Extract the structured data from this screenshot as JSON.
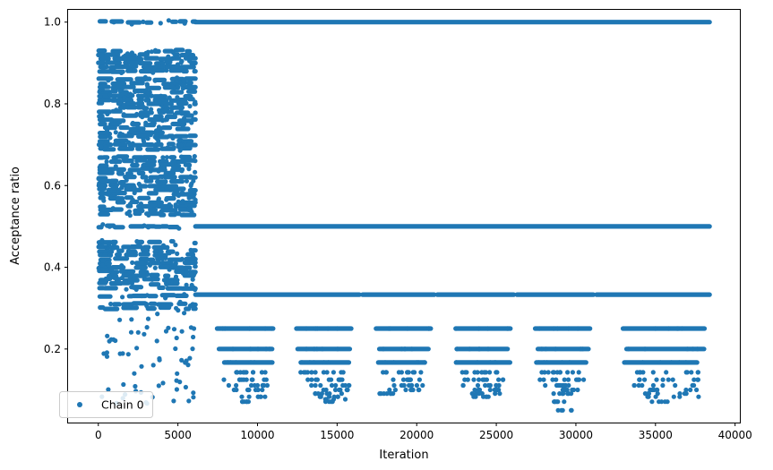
{
  "chart_data": {
    "type": "scatter",
    "title": "",
    "xlabel": "Iteration",
    "ylabel": "Acceptance ratio",
    "xlim": [
      -1900,
      40300
    ],
    "ylim": [
      0.02,
      1.03
    ],
    "xticks": [
      0,
      5000,
      10000,
      15000,
      20000,
      25000,
      30000,
      35000,
      40000
    ],
    "xtick_labels": [
      "0",
      "5000",
      "10000",
      "15000",
      "20000",
      "25000",
      "30000",
      "35000",
      "40000"
    ],
    "yticks": [
      0.2,
      0.4,
      0.6,
      0.8,
      1.0
    ],
    "ytick_labels": [
      "0.2",
      "0.4",
      "0.6",
      "0.8",
      "1.0"
    ],
    "grid": false,
    "legend_position": "bottom-left",
    "color": "#1f77b4",
    "series": [
      {
        "name": "Chain 0",
        "marker": "circle",
        "n_iterations": 38400,
        "phases": [
          {
            "x_range": [
              0,
              6100
            ],
            "description": "adaptation phase, dense band of values between 0.3 and 0.94 with sparse values down to 0.07",
            "dense_levels": [
              1.0,
              0.93,
              0.92,
              0.91,
              0.9,
              0.89,
              0.88,
              0.86,
              0.85,
              0.84,
              0.83,
              0.82,
              0.81,
              0.8,
              0.79,
              0.78,
              0.77,
              0.76,
              0.75,
              0.74,
              0.73,
              0.72,
              0.71,
              0.7,
              0.69,
              0.67,
              0.66,
              0.65,
              0.64,
              0.63,
              0.62,
              0.61,
              0.6,
              0.59,
              0.58,
              0.57,
              0.56,
              0.55,
              0.54,
              0.53,
              0.5,
              0.46,
              0.45,
              0.44,
              0.43,
              0.42,
              0.41,
              0.4,
              0.39,
              0.38,
              0.37,
              0.36,
              0.35,
              0.33,
              0.31,
              0.3
            ],
            "sparse_levels": [
              0.29,
              0.27,
              0.25,
              0.24,
              0.23,
              0.22,
              0.2,
              0.19,
              0.18,
              0.17,
              0.16,
              0.14,
              0.12,
              0.11,
              0.1,
              0.09,
              0.08,
              0.07
            ]
          },
          {
            "x_range": [
              6100,
              38400
            ],
            "description": "sampling phase, values cluster at discrete fractions",
            "constant_levels": [
              1.0,
              0.5
            ],
            "level_0333_gaps": [
              [
                16400,
                16600
              ],
              [
                21100,
                21300
              ],
              [
                26100,
                26300
              ],
              [
                31100,
                31300
              ]
            ],
            "clusters": [
              {
                "x_range": [
                  6800,
                  11200
                ],
                "levels": [
                  0.25,
                  0.2,
                  0.167,
                  0.143,
                  0.125,
                  0.111,
                  0.1,
                  0.083,
                  0.071
                ]
              },
              {
                "x_range": [
                  11800,
                  16100
                ],
                "levels": [
                  0.25,
                  0.2,
                  0.167,
                  0.143,
                  0.125,
                  0.111,
                  0.1,
                  0.091,
                  0.083,
                  0.077,
                  0.071
                ]
              },
              {
                "x_range": [
                  16800,
                  21100
                ],
                "levels": [
                  0.25,
                  0.2,
                  0.167,
                  0.143,
                  0.125,
                  0.111,
                  0.1,
                  0.091
                ]
              },
              {
                "x_range": [
                  21800,
                  26100
                ],
                "levels": [
                  0.25,
                  0.2,
                  0.167,
                  0.143,
                  0.125,
                  0.111,
                  0.1,
                  0.091,
                  0.083
                ]
              },
              {
                "x_range": [
                  26800,
                  31100
                ],
                "levels": [
                  0.25,
                  0.2,
                  0.167,
                  0.143,
                  0.125,
                  0.111,
                  0.1,
                  0.091,
                  0.071,
                  0.05
                ]
              },
              {
                "x_range": [
                  32000,
                  38400
                ],
                "levels": [
                  0.25,
                  0.2,
                  0.167,
                  0.143,
                  0.125,
                  0.111,
                  0.1,
                  0.091,
                  0.083,
                  0.071
                ]
              }
            ]
          }
        ]
      }
    ]
  }
}
